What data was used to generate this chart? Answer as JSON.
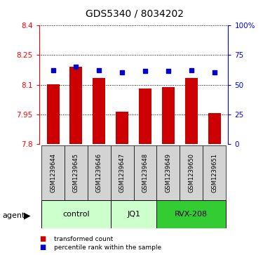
{
  "title": "GDS5340 / 8034202",
  "samples": [
    "GSM1239644",
    "GSM1239645",
    "GSM1239646",
    "GSM1239647",
    "GSM1239648",
    "GSM1239649",
    "GSM1239650",
    "GSM1239651"
  ],
  "bar_values": [
    8.103,
    8.193,
    8.135,
    7.965,
    8.082,
    8.09,
    8.135,
    7.955
  ],
  "dot_values": [
    8.172,
    8.192,
    8.172,
    8.162,
    8.17,
    8.17,
    8.175,
    8.163
  ],
  "bar_color": "#cc0000",
  "dot_color": "#0000cc",
  "ymin": 7.8,
  "ymax": 8.4,
  "yticks": [
    7.8,
    7.95,
    8.1,
    8.25,
    8.4
  ],
  "right_ytick_labels": [
    "0",
    "25",
    "50",
    "75",
    "100%"
  ],
  "right_yticks_pct": [
    0,
    25,
    50,
    75,
    100
  ],
  "groups": [
    {
      "label": "control",
      "start": 0,
      "end": 3,
      "color": "#ccffcc"
    },
    {
      "label": "JQ1",
      "start": 3,
      "end": 5,
      "color": "#ccffcc"
    },
    {
      "label": "RVX-208",
      "start": 5,
      "end": 8,
      "color": "#33cc33"
    }
  ],
  "agent_label": "agent",
  "legend_bar_label": "transformed count",
  "legend_dot_label": "percentile rank within the sample"
}
